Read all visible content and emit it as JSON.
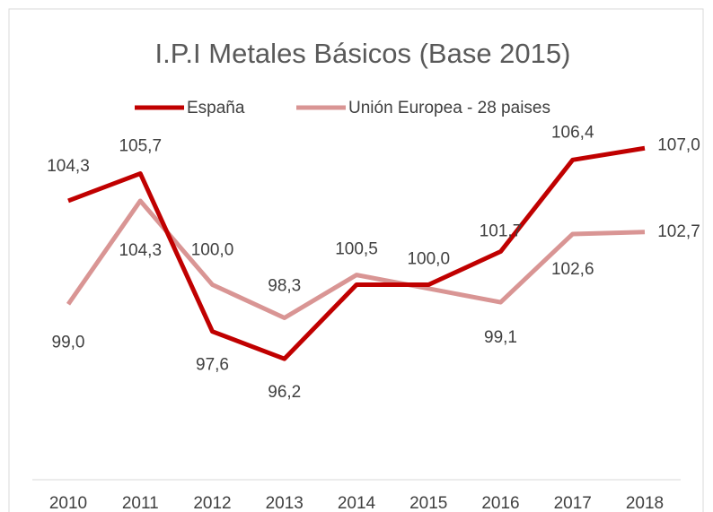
{
  "chart_data": {
    "type": "line",
    "title": "I.P.I Metales Básicos (Base 2015)",
    "categories": [
      "2010",
      "2011",
      "2012",
      "2013",
      "2014",
      "2015",
      "2016",
      "2017",
      "2018"
    ],
    "series": [
      {
        "name": "España",
        "color": "#c00000",
        "values": [
          104.3,
          105.7,
          97.6,
          96.2,
          100.0,
          100.0,
          101.7,
          106.4,
          107.0
        ],
        "value_labels": [
          "104,3",
          "105,7",
          "97,6",
          "96,2",
          null,
          "100,0",
          "101,7",
          "106,4",
          "107,0"
        ]
      },
      {
        "name": "Unión Europea - 28 paises",
        "color": "#d99594",
        "values": [
          99.0,
          104.3,
          100.0,
          98.3,
          100.5,
          99.8,
          99.1,
          102.6,
          102.7
        ],
        "value_labels": [
          "99,0",
          "104,3",
          "100,0",
          "98,3",
          "100,5",
          null,
          "99,1",
          "102,6",
          "102,7"
        ]
      }
    ],
    "ylim": [
      90,
      110
    ]
  }
}
